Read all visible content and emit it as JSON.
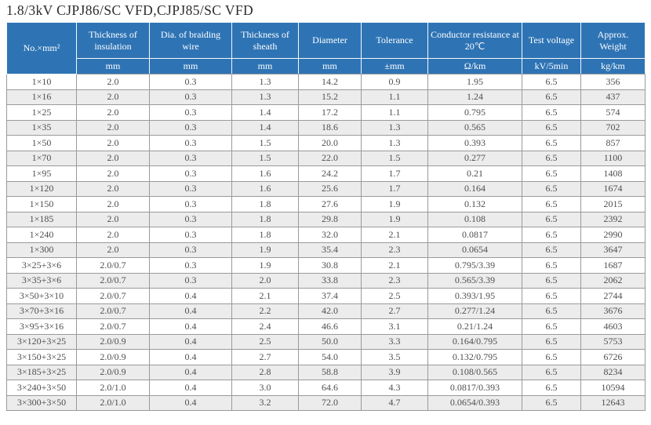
{
  "title": "1.8/3kV CJPJ86/SC VFD,CJPJ85/SC VFD",
  "colors": {
    "header_bg": "#2e74b5",
    "header_text": "#fdfdfd",
    "stripe_bg": "#ececec",
    "body_text": "#4f4f4f",
    "grid_border": "#9a9a9a"
  },
  "table": {
    "columns": [
      {
        "label": "No.×mm²",
        "unit": ""
      },
      {
        "label": "Thickness of insulation",
        "unit": "mm"
      },
      {
        "label": "Dia. of braiding wire",
        "unit": "mm"
      },
      {
        "label": "Thickness of sheath",
        "unit": "mm"
      },
      {
        "label": "Diameter",
        "unit": "mm"
      },
      {
        "label": "Tolerance",
        "unit": "±mm"
      },
      {
        "label": "Conductor resistance at 20℃",
        "unit": "Ω/km"
      },
      {
        "label": "Test voltage",
        "unit": "kV/5min"
      },
      {
        "label": "Approx. Weight",
        "unit": "kg/km"
      }
    ],
    "rows": [
      [
        "1×10",
        "2.0",
        "0.3",
        "1.3",
        "14.2",
        "0.9",
        "1.95",
        "6.5",
        "356"
      ],
      [
        "1×16",
        "2.0",
        "0.3",
        "1.3",
        "15.2",
        "1.1",
        "1.24",
        "6.5",
        "437"
      ],
      [
        "1×25",
        "2.0",
        "0.3",
        "1.4",
        "17.2",
        "1.1",
        "0.795",
        "6.5",
        "574"
      ],
      [
        "1×35",
        "2.0",
        "0.3",
        "1.4",
        "18.6",
        "1.3",
        "0.565",
        "6.5",
        "702"
      ],
      [
        "1×50",
        "2.0",
        "0.3",
        "1.5",
        "20.0",
        "1.3",
        "0.393",
        "6.5",
        "857"
      ],
      [
        "1×70",
        "2.0",
        "0.3",
        "1.5",
        "22.0",
        "1.5",
        "0.277",
        "6.5",
        "1100"
      ],
      [
        "1×95",
        "2.0",
        "0.3",
        "1.6",
        "24.2",
        "1.7",
        "0.21",
        "6.5",
        "1408"
      ],
      [
        "1×120",
        "2.0",
        "0.3",
        "1.6",
        "25.6",
        "1.7",
        "0.164",
        "6.5",
        "1674"
      ],
      [
        "1×150",
        "2.0",
        "0.3",
        "1.8",
        "27.6",
        "1.9",
        "0.132",
        "6.5",
        "2015"
      ],
      [
        "1×185",
        "2.0",
        "0.3",
        "1.8",
        "29.8",
        "1.9",
        "0.108",
        "6.5",
        "2392"
      ],
      [
        "1×240",
        "2.0",
        "0.3",
        "1.8",
        "32.0",
        "2.1",
        "0.0817",
        "6.5",
        "2990"
      ],
      [
        "1×300",
        "2.0",
        "0.3",
        "1.9",
        "35.4",
        "2.3",
        "0.0654",
        "6.5",
        "3647"
      ],
      [
        "3×25+3×6",
        "2.0/0.7",
        "0.3",
        "1.9",
        "30.8",
        "2.1",
        "0.795/3.39",
        "6.5",
        "1687"
      ],
      [
        "3×35+3×6",
        "2.0/0.7",
        "0.3",
        "2.0",
        "33.8",
        "2.3",
        "0.565/3.39",
        "6.5",
        "2062"
      ],
      [
        "3×50+3×10",
        "2.0/0.7",
        "0.4",
        "2.1",
        "37.4",
        "2.5",
        "0.393/1.95",
        "6.5",
        "2744"
      ],
      [
        "3×70+3×16",
        "2.0/0.7",
        "0.4",
        "2.2",
        "42.0",
        "2.7",
        "0.277/1.24",
        "6.5",
        "3676"
      ],
      [
        "3×95+3×16",
        "2.0/0.7",
        "0.4",
        "2.4",
        "46.6",
        "3.1",
        "0.21/1.24",
        "6.5",
        "4603"
      ],
      [
        "3×120+3×25",
        "2.0/0.9",
        "0.4",
        "2.5",
        "50.0",
        "3.3",
        "0.164/0.795",
        "6.5",
        "5753"
      ],
      [
        "3×150+3×25",
        "2.0/0.9",
        "0.4",
        "2.7",
        "54.0",
        "3.5",
        "0.132/0.795",
        "6.5",
        "6726"
      ],
      [
        "3×185+3×25",
        "2.0/0.9",
        "0.4",
        "2.8",
        "58.8",
        "3.9",
        "0.108/0.565",
        "6.5",
        "8234"
      ],
      [
        "3×240+3×50",
        "2.0/1.0",
        "0.4",
        "3.0",
        "64.6",
        "4.3",
        "0.0817/0.393",
        "6.5",
        "10594"
      ],
      [
        "3×300+3×50",
        "2.0/1.0",
        "0.4",
        "3.2",
        "72.0",
        "4.7",
        "0.0654/0.393",
        "6.5",
        "12643"
      ]
    ]
  }
}
